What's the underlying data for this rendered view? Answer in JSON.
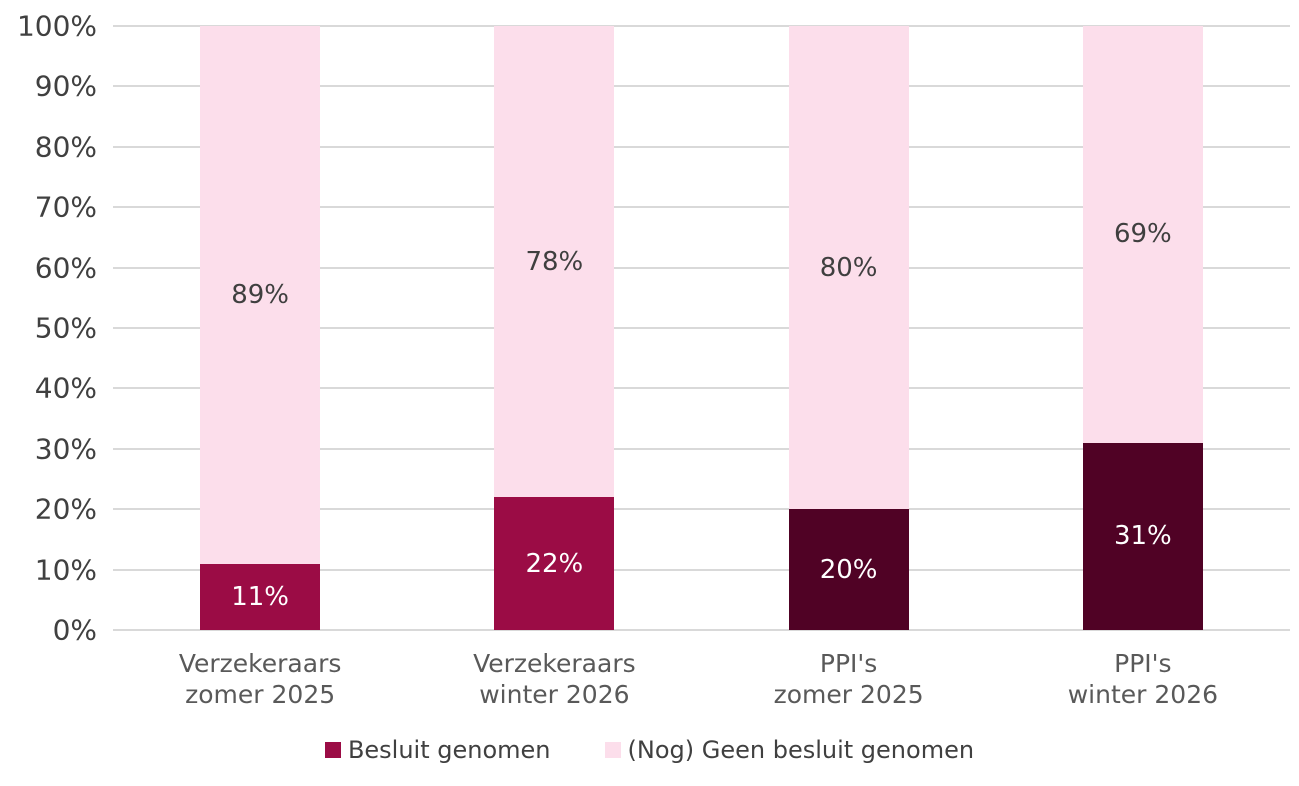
{
  "chart_data": {
    "type": "bar",
    "subtype": "stacked-100-percent-column",
    "title": "",
    "xlabel": "",
    "ylabel": "",
    "ylim": [
      0,
      100
    ],
    "grid": true,
    "grid_color": "#D9D9D9",
    "background_color": "#FFFFFF",
    "categories": [
      "Verzekeraars\nzomer 2025",
      "Verzekeraars\nwinter 2026",
      "PPI's\nzomer 2025",
      "PPI's\nwinter 2026"
    ],
    "y_ticks": [
      "0%",
      "10%",
      "20%",
      "30%",
      "40%",
      "50%",
      "60%",
      "70%",
      "80%",
      "90%",
      "100%"
    ],
    "y_tick_values": [
      0,
      10,
      20,
      30,
      40,
      50,
      60,
      70,
      80,
      90,
      100
    ],
    "series": [
      {
        "name": "Besluit genomen",
        "values": [
          11,
          22,
          20,
          31
        ],
        "labels": [
          "11%",
          "22%",
          "20%",
          "31%"
        ],
        "bar_colors": [
          "#9B0C45",
          "#9B0C45",
          "#500225",
          "#500225"
        ],
        "label_color": "#FFFFFF"
      },
      {
        "name": "(Nog) Geen besluit genomen",
        "values": [
          89,
          78,
          80,
          69
        ],
        "labels": [
          "89%",
          "78%",
          "80%",
          "69%"
        ],
        "bar_colors": [
          "#FCDEEB",
          "#FCDEEB",
          "#FCDEEB",
          "#FCDEEB"
        ],
        "label_color": "#3F3F3F"
      }
    ],
    "legend_position": "bottom",
    "legend": [
      {
        "label": "Besluit genomen",
        "color": "#9B0C45"
      },
      {
        "label": "(Nog) Geen besluit genomen",
        "color": "#FCDEEB"
      }
    ]
  },
  "colors": {
    "axis_text": "#404040",
    "category_text": "#595959",
    "legend_text": "#404040"
  }
}
